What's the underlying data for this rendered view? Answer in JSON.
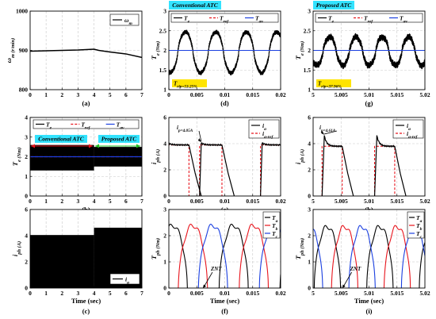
{
  "colors": {
    "black": "#000000",
    "red": "#e8141c",
    "blue": "#1a3fe0",
    "cyan_box": "#33e3ff",
    "green_arrow": "#22c022",
    "yellow_box": "#ffe400"
  },
  "chart_data": [
    {
      "id": "a",
      "type": "line",
      "panel_label": "(a)",
      "ylabel": "ω_m (r/min)",
      "xlabel": "",
      "xlim": [
        0,
        7
      ],
      "ylim": [
        800,
        1000
      ],
      "xticks": [
        "0",
        "1",
        "2",
        "3",
        "4",
        "5",
        "6",
        "7"
      ],
      "yticks": [
        "800",
        "900",
        "1000"
      ],
      "series": [
        {
          "name": "ω_m",
          "x": [
            0,
            1,
            2,
            3,
            4,
            4.3,
            5,
            6,
            7
          ],
          "y": [
            898,
            899,
            900,
            901,
            903,
            900,
            896,
            891,
            882
          ]
        }
      ]
    },
    {
      "id": "b",
      "type": "line",
      "panel_label": "(b)",
      "ylabel": "T_e (Nm)",
      "xlabel": "",
      "xlim": [
        0,
        7
      ],
      "ylim": [
        0,
        4
      ],
      "xticks": [
        "0",
        "1",
        "2",
        "3",
        "4",
        "5",
        "6",
        "7"
      ],
      "yticks": [
        "0",
        "1",
        "2",
        "3",
        "4"
      ],
      "annotations": [
        "Conventional ATC",
        "Proposed ATC"
      ],
      "series": [
        {
          "name": "T_e",
          "band": [
            [
              0,
              4,
              1.3,
              2.6
            ],
            [
              4,
              7,
              1.5,
              2.5
            ]
          ]
        },
        {
          "name": "T_ref",
          "x": [
            0,
            7
          ],
          "y": [
            2,
            2
          ]
        },
        {
          "name": "T_av",
          "x": [
            0,
            7
          ],
          "y": [
            2,
            2
          ]
        }
      ]
    },
    {
      "id": "c",
      "type": "line",
      "panel_label": "(c)",
      "ylabel": "i_ph (A)",
      "xlabel": "Time (sec)",
      "xlim": [
        0,
        7
      ],
      "ylim": [
        0,
        6
      ],
      "xticks": [
        "0",
        "1",
        "2",
        "3",
        "4",
        "5",
        "6",
        "7"
      ],
      "yticks": [
        "0",
        "2",
        "4",
        "6"
      ],
      "series": [
        {
          "name": "i_a",
          "band": [
            [
              0,
              4,
              0,
              4.05
            ],
            [
              4,
              7,
              0,
              4.61
            ]
          ]
        }
      ]
    },
    {
      "id": "d",
      "type": "line",
      "panel_label": "(d)",
      "ylabel": "T_e (Nm)",
      "xlabel": "",
      "xlim": [
        0,
        0.02
      ],
      "ylim": [
        1,
        3
      ],
      "xticks": [
        "0",
        "0.005",
        "0.01",
        "0.015",
        "0.02"
      ],
      "yticks": [
        "1",
        "1.5",
        "2",
        "2.5",
        "3"
      ],
      "title": "Conventional ATC",
      "note": "T_rip=53.25%",
      "torque": {
        "period": 0.00545,
        "phase": 0.0016,
        "center": 1.95,
        "amp": 0.52
      },
      "series": [
        {
          "name": "T_e"
        },
        {
          "name": "T_ref",
          "x": [
            0,
            0.02
          ],
          "y": [
            2,
            2
          ]
        },
        {
          "name": "T_av",
          "x": [
            0,
            0.02
          ],
          "y": [
            2,
            2
          ]
        }
      ]
    },
    {
      "id": "e",
      "type": "line",
      "panel_label": "(e)",
      "ylabel": "i_ph (A)",
      "xlabel": "",
      "xlim": [
        0,
        0.02
      ],
      "ylim": [
        0,
        6
      ],
      "xticks": [
        "0",
        "0.005",
        "0.01",
        "0.015",
        "0.02"
      ],
      "yticks": [
        "0",
        "2",
        "4",
        "6"
      ],
      "peak_note": "i_p=4.05A",
      "current": {
        "period": 0.0109,
        "starts": [
          -0.0004,
          0.0055,
          0.0164
        ],
        "rise": 0.0003,
        "flat": 3.9,
        "peak": 4.05,
        "on": 0.004,
        "fall": 0.0022
      },
      "series": [
        {
          "name": "i_a"
        },
        {
          "name": "i_a-ref"
        }
      ]
    },
    {
      "id": "f",
      "type": "line",
      "panel_label": "(f)",
      "ylabel": "T_ph (Nm)",
      "xlabel": "Time (sec)",
      "xlim": [
        0,
        0.02
      ],
      "ylim": [
        0,
        3
      ],
      "xticks": [
        "0",
        "0.005",
        "0.01",
        "0.015",
        "0.02"
      ],
      "yticks": [
        "0",
        "1",
        "2",
        "3"
      ],
      "zero_note": "ZNT",
      "phase": {
        "period": 0.0109,
        "width": 0.0052,
        "peak": 2.4
      },
      "series": [
        {
          "name": "T_a",
          "offset": -0.0019
        },
        {
          "name": "T_b",
          "offset": 0.0017
        },
        {
          "name": "T_c",
          "offset": 0.0053
        }
      ]
    },
    {
      "id": "g",
      "type": "line",
      "panel_label": "(g)",
      "ylabel": "T_e (Nm)",
      "xlabel": "",
      "xlim": [
        5,
        5.02
      ],
      "ylim": [
        1,
        3
      ],
      "xticks": [
        "5",
        "5.005",
        "5.01",
        "5.015",
        "5.02"
      ],
      "yticks": [
        "1",
        "1.5",
        "2",
        "2.5",
        "3"
      ],
      "title": "Proposed ATC",
      "note": "T_rip=37.96%",
      "torque": {
        "period": 0.0047,
        "phase": 5.0018,
        "center": 1.98,
        "amp": 0.36
      },
      "series": [
        {
          "name": "T_e"
        },
        {
          "name": "T_ref",
          "x": [
            5,
            5.02
          ],
          "y": [
            2,
            2
          ]
        },
        {
          "name": "T_av",
          "x": [
            5,
            5.02
          ],
          "y": [
            2,
            2
          ]
        }
      ]
    },
    {
      "id": "h",
      "type": "line",
      "panel_label": "(h)",
      "ylabel": "i_ph (A)",
      "xlabel": "",
      "xlim": [
        5,
        5.02
      ],
      "ylim": [
        0,
        6
      ],
      "xticks": [
        "5",
        "5.005",
        "5.01",
        "5.015",
        "5.02"
      ],
      "yticks": [
        "0",
        "2",
        "4",
        "6"
      ],
      "peak_note": "i_p=4.61A",
      "current": {
        "period": 0.0094,
        "starts": [
          5.0016,
          5.011,
          5.0204
        ],
        "rise": 0.0004,
        "flat": 3.8,
        "peak": 4.61,
        "on": 0.0036,
        "fall": 0.002
      },
      "series": [
        {
          "name": "i_a"
        },
        {
          "name": "i_a-ref"
        }
      ]
    },
    {
      "id": "i",
      "type": "line",
      "panel_label": "(i)",
      "ylabel": "T_ph (Nm)",
      "xlabel": "Time (sec)",
      "xlim": [
        5,
        5.02
      ],
      "ylim": [
        0,
        3
      ],
      "xticks": [
        "5",
        "5.005",
        "5.01",
        "5.015",
        "5.02"
      ],
      "yticks": [
        "0",
        "1",
        "2",
        "3"
      ],
      "zero_note": "ZNT",
      "phase": {
        "period": 0.0094,
        "width": 0.0047,
        "peak": 2.35
      },
      "series": [
        {
          "name": "T_a",
          "offset": 5.0002
        },
        {
          "name": "T_b",
          "offset": 5.0033
        },
        {
          "name": "T_c",
          "offset": 5.0064
        }
      ]
    }
  ]
}
